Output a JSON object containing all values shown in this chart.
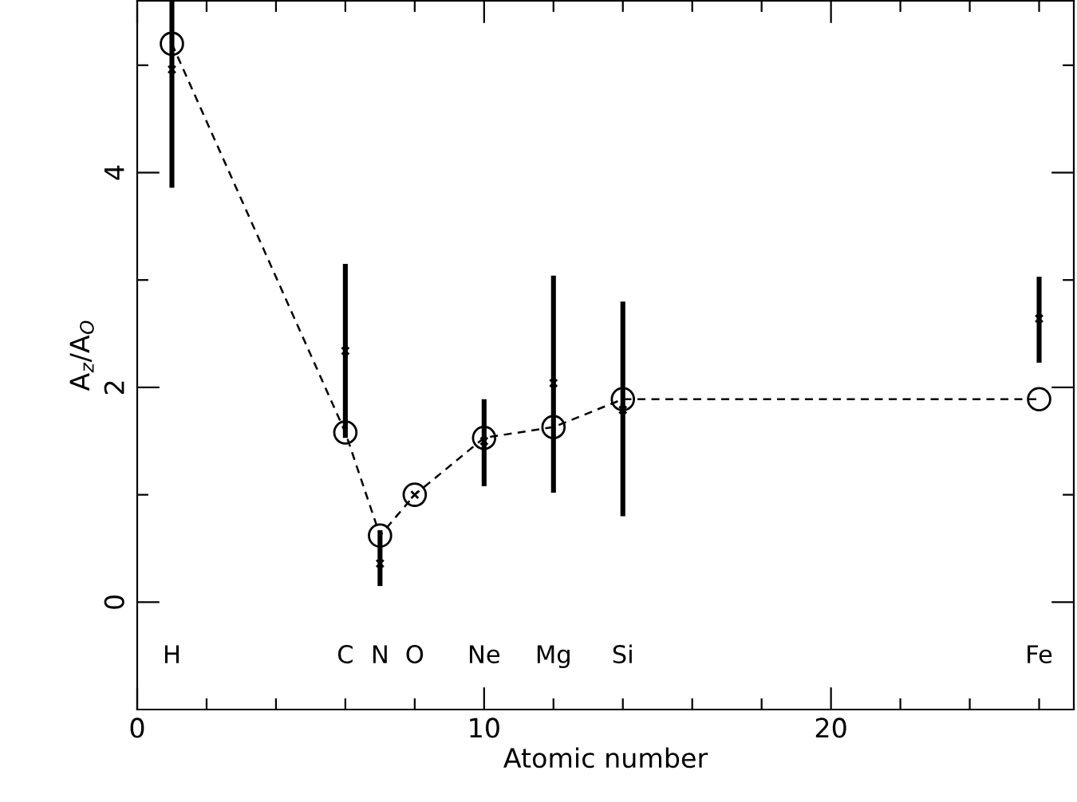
{
  "chart_data": {
    "type": "line",
    "xlabel": "Atomic number",
    "ylabel": "A$_{z}$/A$_{O}$",
    "xlim": [
      0,
      27
    ],
    "ylim": [
      -1,
      5.6
    ],
    "xticks": [
      0,
      {
        "value": 2,
        "label": null
      },
      {
        "value": 4,
        "label": null
      },
      {
        "value": 6,
        "label": null
      },
      {
        "value": 8,
        "label": null
      },
      10,
      {
        "value": 12,
        "label": null
      },
      {
        "value": 14,
        "label": null
      },
      {
        "value": 16,
        "label": null
      },
      {
        "value": 18,
        "label": null
      },
      20,
      {
        "value": 22,
        "label": null
      },
      {
        "value": 24,
        "label": null
      },
      {
        "value": 26,
        "label": null
      }
    ],
    "yticks": [
      0,
      {
        "value": 1,
        "label": null
      },
      2,
      {
        "value": 3,
        "label": null
      },
      4,
      {
        "value": 5,
        "label": null
      }
    ],
    "x": [
      1,
      6,
      7,
      8,
      10,
      12,
      14,
      26
    ],
    "series": [
      {
        "color": "#000000",
        "marker": "circle",
        "line_style": "dashed",
        "values": [
          5.2,
          1.58,
          0.62,
          1.0,
          1.53,
          1.63,
          1.89,
          1.89
        ]
      },
      {
        "type": "scatter",
        "color": "#000000",
        "marker": "cross",
        "values": [
          4.96,
          2.34,
          0.36,
          1.0,
          1.5,
          2.04,
          1.79,
          2.64
        ],
        "errors": [
          [
            3.86,
            5.6
          ],
          [
            1.53,
            3.15
          ],
          [
            0.15,
            0.67
          ],
          null,
          [
            1.08,
            1.89
          ],
          [
            1.02,
            3.04
          ],
          [
            0.8,
            2.8
          ],
          [
            2.23,
            3.03
          ]
        ]
      }
    ],
    "annotations": [
      "H",
      "C",
      "N",
      "O",
      "Ne",
      "Mg",
      "Si",
      "Fe"
    ],
    "grid": false,
    "legend": false
  }
}
